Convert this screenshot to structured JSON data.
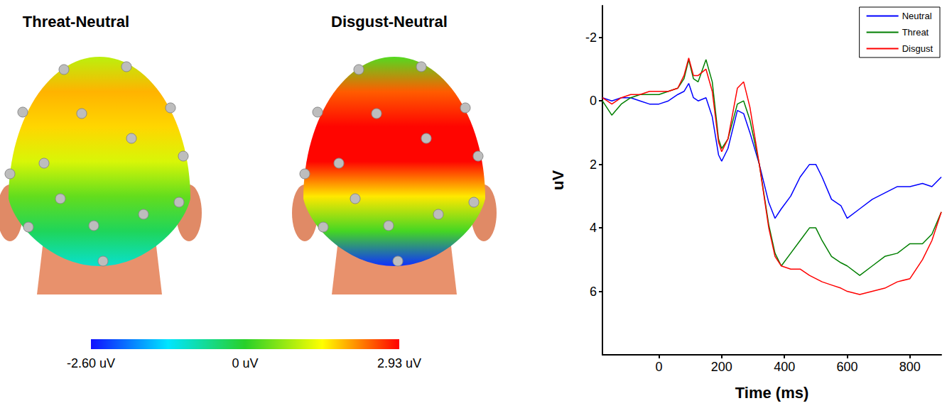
{
  "chart_data": [
    {
      "type": "topomap",
      "maps": [
        {
          "title": "Threat-Neutral",
          "values": [
            1.0,
            1.9,
            1.7,
            1.2,
            0.4,
            -0.3,
            -1.0
          ]
        },
        {
          "title": "Disgust-Neutral",
          "values": [
            0.3,
            2.4,
            2.9,
            2.9,
            1.6,
            0.2,
            -2.4
          ]
        }
      ],
      "colorbar": {
        "range": [
          -2.6,
          2.93
        ],
        "ticks": [
          {
            "value": -2.6,
            "label": "-2.60 uV"
          },
          {
            "value": 0,
            "label": "0 uV"
          },
          {
            "value": 2.93,
            "label": "2.93 uV"
          }
        ]
      }
    },
    {
      "type": "line",
      "xlabel": "Time (ms)",
      "ylabel": "uV",
      "x": [
        -180,
        -150,
        -120,
        -90,
        -60,
        -30,
        0,
        30,
        60,
        80,
        95,
        110,
        125,
        150,
        170,
        190,
        200,
        220,
        250,
        270,
        290,
        320,
        350,
        370,
        390,
        420,
        450,
        480,
        500,
        520,
        550,
        580,
        600,
        640,
        680,
        720,
        760,
        800,
        840,
        870,
        900
      ],
      "series": [
        {
          "name": "Neutral",
          "color": "#0000ff",
          "values": [
            -0.1,
            0.0,
            -0.1,
            -0.1,
            0.0,
            0.1,
            0.1,
            0.0,
            -0.2,
            -0.3,
            -0.55,
            -0.1,
            0.0,
            -0.1,
            0.5,
            1.7,
            1.9,
            1.5,
            0.3,
            0.4,
            1.0,
            2.0,
            3.2,
            3.7,
            3.4,
            3.0,
            2.4,
            2.0,
            2.0,
            2.4,
            3.1,
            3.3,
            3.7,
            3.4,
            3.1,
            2.9,
            2.7,
            2.7,
            2.6,
            2.7,
            2.4
          ]
        },
        {
          "name": "Threat",
          "color": "#007f00",
          "values": [
            0.0,
            0.45,
            0.1,
            -0.1,
            -0.2,
            -0.2,
            -0.2,
            -0.3,
            -0.4,
            -0.7,
            -1.3,
            -0.7,
            -0.6,
            -1.3,
            -0.6,
            1.2,
            1.5,
            1.2,
            0.1,
            0.0,
            0.6,
            2.0,
            3.9,
            4.8,
            5.2,
            4.8,
            4.4,
            4.0,
            4.0,
            4.4,
            4.9,
            5.1,
            5.2,
            5.5,
            5.2,
            4.9,
            4.8,
            4.5,
            4.5,
            4.2,
            3.5
          ]
        },
        {
          "name": "Disgust",
          "color": "#ff0000",
          "values": [
            -0.1,
            0.1,
            -0.1,
            -0.2,
            -0.2,
            -0.3,
            -0.3,
            -0.3,
            -0.4,
            -0.8,
            -1.35,
            -0.8,
            -0.8,
            -1.0,
            -0.3,
            1.3,
            1.6,
            1.2,
            -0.4,
            -0.6,
            0.2,
            2.0,
            4.0,
            4.9,
            5.2,
            5.3,
            5.3,
            5.5,
            5.6,
            5.7,
            5.8,
            5.9,
            6.0,
            6.1,
            6.0,
            5.9,
            5.7,
            5.6,
            5.0,
            4.4,
            3.5
          ]
        }
      ],
      "xlim": [
        -180,
        900
      ],
      "xticks": [
        0,
        200,
        400,
        600,
        800
      ],
      "ylim": [
        8,
        -3
      ],
      "yticks": [
        -2,
        0,
        2,
        4,
        6
      ],
      "grid": false,
      "legend": "upper right"
    }
  ]
}
